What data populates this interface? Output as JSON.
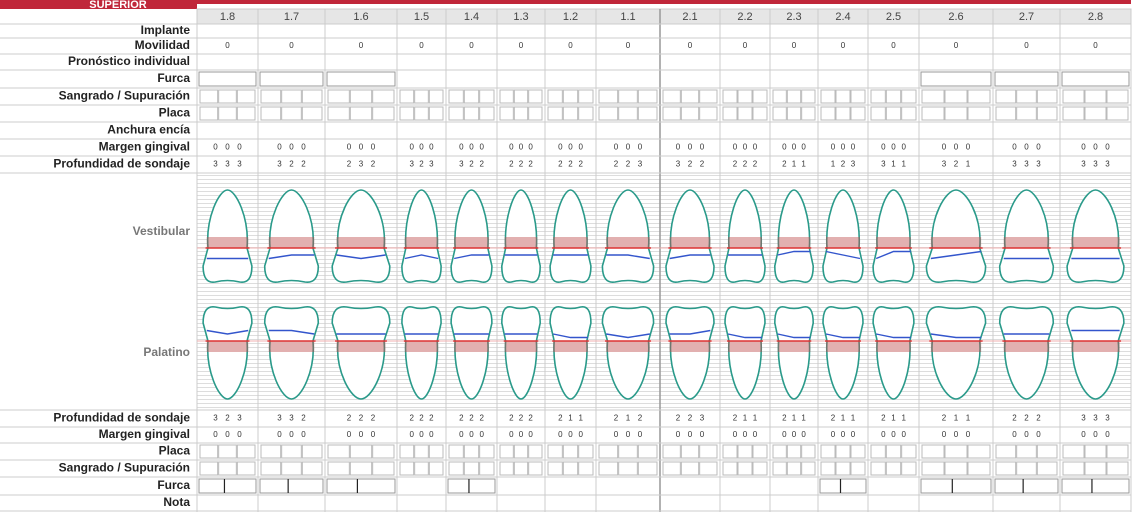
{
  "header": {
    "title": "SUPERIOR"
  },
  "teeth": [
    "1.8",
    "1.7",
    "1.6",
    "1.5",
    "1.4",
    "1.3",
    "1.2",
    "1.1",
    "2.1",
    "2.2",
    "2.3",
    "2.4",
    "2.5",
    "2.6",
    "2.7",
    "2.8"
  ],
  "vestibular_table": {
    "labels": [
      "Implante",
      "Movilidad",
      "Pronóstico individual",
      "Furca",
      "Sangrado / Supuración",
      "Placa",
      "Anchura encía",
      "Margen gingival",
      "Profundidad de sondaje"
    ],
    "movilidad": [
      0,
      0,
      0,
      0,
      0,
      0,
      0,
      0,
      0,
      0,
      0,
      0,
      0,
      0,
      0,
      0
    ],
    "margen_gingival": [
      [
        0,
        0,
        0
      ],
      [
        0,
        0,
        0
      ],
      [
        0,
        0,
        0
      ],
      [
        0,
        0,
        0
      ],
      [
        0,
        0,
        0
      ],
      [
        0,
        0,
        0
      ],
      [
        0,
        0,
        0
      ],
      [
        0,
        0,
        0
      ],
      [
        0,
        0,
        0
      ],
      [
        0,
        0,
        0
      ],
      [
        0,
        0,
        0
      ],
      [
        0,
        0,
        0
      ],
      [
        0,
        0,
        0
      ],
      [
        0,
        0,
        0
      ],
      [
        0,
        0,
        0
      ],
      [
        0,
        0,
        0
      ]
    ],
    "profundidad_sondaje": [
      [
        3,
        3,
        3
      ],
      [
        3,
        2,
        2
      ],
      [
        2,
        3,
        2
      ],
      [
        3,
        2,
        3
      ],
      [
        3,
        2,
        2
      ],
      [
        2,
        2,
        2
      ],
      [
        2,
        2,
        2
      ],
      [
        2,
        2,
        3
      ],
      [
        3,
        2,
        2
      ],
      [
        2,
        2,
        2
      ],
      [
        2,
        1,
        1
      ],
      [
        1,
        2,
        3
      ],
      [
        3,
        1,
        1
      ],
      [
        3,
        2,
        1
      ],
      [
        3,
        3,
        3
      ],
      [
        3,
        3,
        3
      ]
    ]
  },
  "drawing": {
    "vestibular": "Vestibular",
    "palatino": "Palatino"
  },
  "palatal_table": {
    "labels": [
      "Profundidad de sondaje",
      "Margen gingival",
      "Placa",
      "Sangrado / Supuración",
      "Furca",
      "Nota"
    ],
    "profundidad_sondaje": [
      [
        3,
        2,
        3
      ],
      [
        3,
        3,
        2
      ],
      [
        2,
        2,
        2
      ],
      [
        2,
        2,
        2
      ],
      [
        2,
        2,
        2
      ],
      [
        2,
        2,
        2
      ],
      [
        2,
        1,
        1
      ],
      [
        2,
        1,
        2
      ],
      [
        2,
        2,
        3
      ],
      [
        2,
        1,
        1
      ],
      [
        2,
        1,
        1
      ],
      [
        2,
        1,
        1
      ],
      [
        2,
        1,
        1
      ],
      [
        2,
        1,
        1
      ],
      [
        2,
        2,
        2
      ],
      [
        3,
        3,
        3
      ]
    ],
    "margen_gingival": [
      [
        0,
        0,
        0
      ],
      [
        0,
        0,
        0
      ],
      [
        0,
        0,
        0
      ],
      [
        0,
        0,
        0
      ],
      [
        0,
        0,
        0
      ],
      [
        0,
        0,
        0
      ],
      [
        0,
        0,
        0
      ],
      [
        0,
        0,
        0
      ],
      [
        0,
        0,
        0
      ],
      [
        0,
        0,
        0
      ],
      [
        0,
        0,
        0
      ],
      [
        0,
        0,
        0
      ],
      [
        0,
        0,
        0
      ],
      [
        0,
        0,
        0
      ],
      [
        0,
        0,
        0
      ],
      [
        0,
        0,
        0
      ]
    ]
  }
}
